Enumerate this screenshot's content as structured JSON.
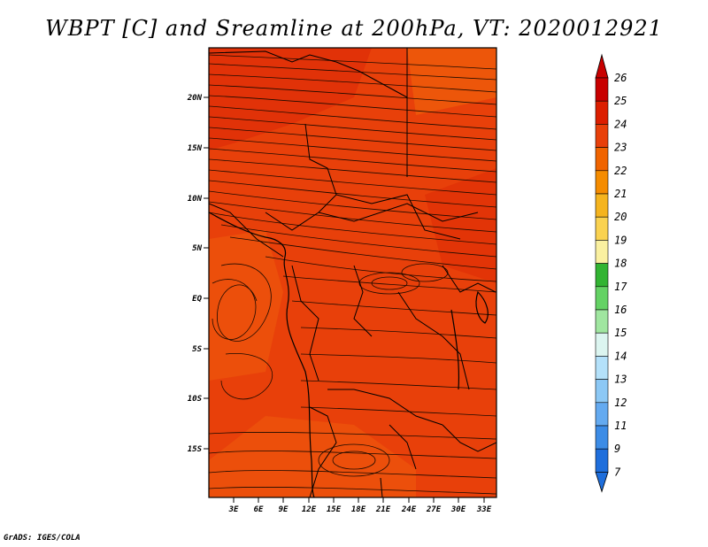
{
  "title": "WBPT [C] and Sreamline at 200hPa, VT: 2020012921",
  "footer": "GrADS: IGES/COLA",
  "map": {
    "lat_ticks": [
      "20N",
      "15N",
      "10N",
      "5N",
      "EQ",
      "5S",
      "10S",
      "15S"
    ],
    "lon_ticks": [
      "3E",
      "6E",
      "9E",
      "12E",
      "15E",
      "18E",
      "21E",
      "24E",
      "27E",
      "30E",
      "33E"
    ],
    "field_color": "#e8400a"
  },
  "colorbar": {
    "labels": [
      "26",
      "25",
      "24",
      "23",
      "22",
      "21",
      "20",
      "19",
      "18",
      "17",
      "16",
      "15",
      "14",
      "13",
      "12",
      "11",
      "9",
      "7"
    ],
    "colors": [
      "#c80000",
      "#dc1e00",
      "#e8400a",
      "#f06400",
      "#f58c00",
      "#f5b41e",
      "#fad250",
      "#faf0a0",
      "#32b432",
      "#64d264",
      "#a0e6a0",
      "#dcf5f0",
      "#b4e1fa",
      "#8cc8f5",
      "#64aaf0",
      "#3c8ce6",
      "#1e6edc"
    ]
  }
}
